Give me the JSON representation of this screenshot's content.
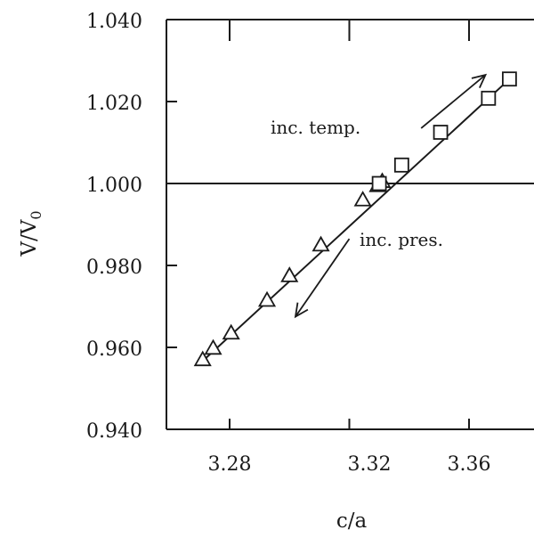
{
  "chart_data": {
    "type": "scatter",
    "xlabel": "c/a",
    "ylabel": "V/V₀",
    "ylabel_main": "V/V",
    "ylabel_sub": "0",
    "xlim": [
      3.26,
      3.38
    ],
    "ylim": [
      0.94,
      1.04
    ],
    "x_ticks": [
      3.28,
      3.32,
      3.36
    ],
    "x_tick_labels": [
      "3.28",
      "3.32",
      "3.36"
    ],
    "y_ticks": [
      0.94,
      0.96,
      0.98,
      1.0,
      1.02,
      1.04
    ],
    "y_tick_labels": [
      "0.940",
      "0.960",
      "0.980",
      "1.000",
      "1.020",
      "1.040"
    ],
    "reference_line_y": 1.0,
    "series": [
      {
        "marker": "triangle",
        "x": [
          3.271,
          3.2745,
          3.2805,
          3.2925,
          3.3,
          3.3105,
          3.3245,
          3.3295,
          3.331
        ],
        "y": [
          0.957,
          0.9598,
          0.9635,
          0.9715,
          0.9775,
          0.985,
          0.996,
          0.9995,
          1.0005
        ]
      },
      {
        "marker": "square",
        "x": [
          3.33,
          3.3375,
          3.3505,
          3.3665,
          3.3735
        ],
        "y": [
          1.0,
          1.0045,
          1.0125,
          1.0208,
          1.0255
        ]
      }
    ],
    "fit_line": {
      "x": [
        3.27,
        3.374
      ],
      "y": [
        0.956,
        1.0258
      ]
    },
    "annotations": [
      {
        "text": "inc. temp.",
        "arrow_from": [
          3.344,
          1.0135
        ],
        "arrow_to": [
          3.3655,
          1.0265
        ]
      },
      {
        "text": "inc. pres.",
        "arrow_from": [
          3.32,
          0.9865
        ],
        "arrow_to": [
          3.302,
          0.9675
        ]
      }
    ]
  }
}
